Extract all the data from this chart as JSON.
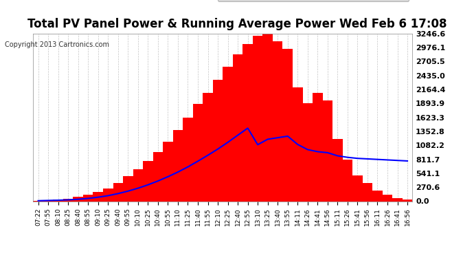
{
  "title": "Total PV Panel Power & Running Average Power Wed Feb 6 17:08",
  "copyright": "Copyright 2013 Cartronics.com",
  "ylabel_right_values": [
    0.0,
    270.6,
    541.1,
    811.7,
    1082.2,
    1352.8,
    1623.3,
    1893.9,
    2164.4,
    2435.0,
    2705.5,
    2976.1,
    3246.6
  ],
  "ymax": 3246.6,
  "ymin": 0.0,
  "bar_color": "#FF0000",
  "avg_line_color": "#0000FF",
  "background_color": "#FFFFFF",
  "grid_color": "#AAAAAA",
  "title_fontsize": 13,
  "legend_avg_color": "#0000AA",
  "legend_pv_color": "#FF0000",
  "x_labels": [
    "07:22",
    "07:55",
    "08:10",
    "08:25",
    "08:40",
    "08:55",
    "09:10",
    "09:25",
    "09:40",
    "09:55",
    "10:10",
    "10:25",
    "10:40",
    "10:55",
    "11:10",
    "11:25",
    "11:40",
    "11:55",
    "12:10",
    "12:25",
    "12:40",
    "12:55",
    "13:10",
    "13:25",
    "13:40",
    "13:55",
    "14:11",
    "14:26",
    "14:41",
    "14:56",
    "15:11",
    "15:26",
    "15:41",
    "15:56",
    "16:11",
    "16:26",
    "16:41",
    "16:56"
  ],
  "pv_data": [
    10,
    20,
    30,
    50,
    80,
    120,
    180,
    250,
    350,
    480,
    620,
    780,
    950,
    1150,
    1380,
    1620,
    1880,
    2100,
    2350,
    2600,
    2850,
    3050,
    3200,
    3246,
    3100,
    2950,
    2200,
    1900,
    2100,
    1950,
    1200,
    800,
    500,
    350,
    200,
    120,
    60,
    30
  ],
  "avg_data": [
    10,
    15,
    20,
    27,
    38,
    55,
    78,
    108,
    148,
    196,
    252,
    318,
    392,
    475,
    565,
    665,
    775,
    890,
    1010,
    1140,
    1278,
    1415,
    1095,
    1200,
    1230,
    1260,
    1100,
    1000,
    960,
    940,
    880,
    850,
    830,
    820,
    810,
    800,
    790,
    780
  ]
}
